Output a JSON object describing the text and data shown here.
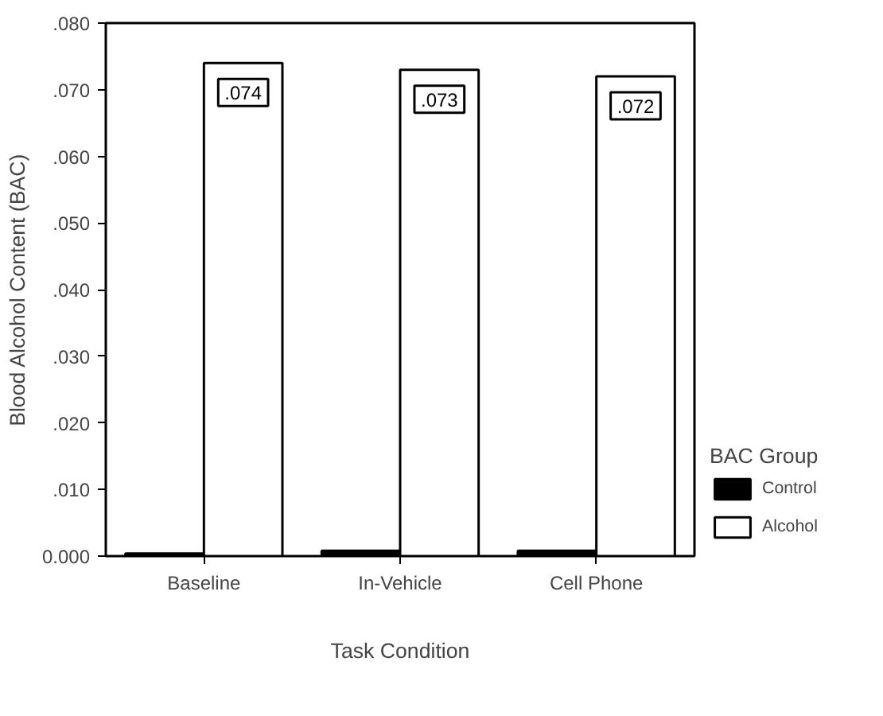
{
  "chart_data": {
    "type": "bar",
    "xlabel": "Task Condition",
    "ylabel": "Blood Alcohol Content (BAC)",
    "legend_title": "BAC Group",
    "categories": [
      "Baseline",
      "In-Vehicle",
      "Cell Phone"
    ],
    "series": [
      {
        "name": "Control",
        "color": "#000000",
        "values": [
          0.0004,
          0.0008,
          0.0008
        ]
      },
      {
        "name": "Alcohol",
        "color": "#ffffff",
        "values": [
          0.074,
          0.073,
          0.072
        ],
        "value_labels": [
          ".074",
          ".073",
          ".072"
        ]
      }
    ],
    "ylim": [
      0,
      0.08
    ],
    "yticks": [
      {
        "value": 0,
        "label": "0.000"
      },
      {
        "value": 0.01,
        "label": ".010"
      },
      {
        "value": 0.02,
        "label": ".020"
      },
      {
        "value": 0.03,
        "label": ".030"
      },
      {
        "value": 0.04,
        "label": ".040"
      },
      {
        "value": 0.05,
        "label": ".050"
      },
      {
        "value": 0.06,
        "label": ".060"
      },
      {
        "value": 0.07,
        "label": ".070"
      },
      {
        "value": 0.08,
        "label": ".080"
      }
    ],
    "grid": false,
    "legend": "bottom right"
  }
}
